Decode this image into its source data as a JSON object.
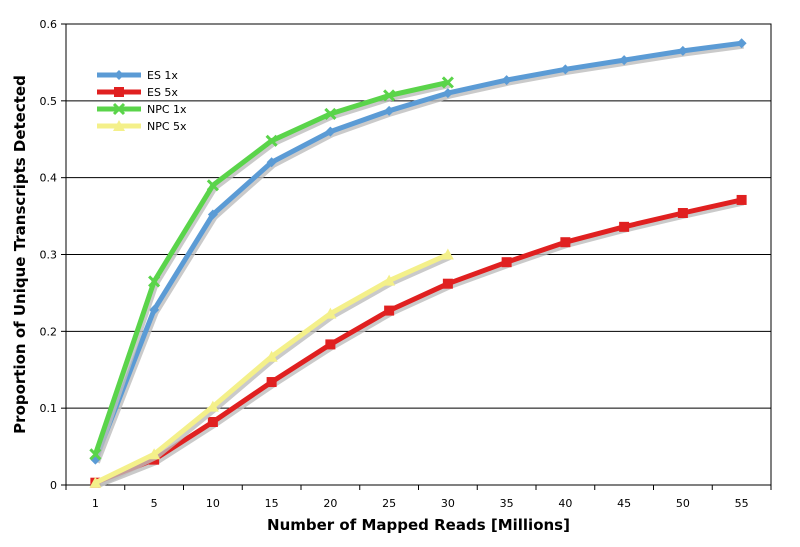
{
  "chart_data": {
    "type": "line",
    "title": "",
    "xlabel": "Number of Mapped Reads [Millions]",
    "ylabel": "Proportion of Unique Transcripts Detected",
    "x_categories": [
      "1",
      "5",
      "10",
      "15",
      "20",
      "25",
      "30",
      "35",
      "40",
      "45",
      "50",
      "55"
    ],
    "y_ticks": [
      "0",
      "0.1",
      "0.2",
      "0.3",
      "0.4",
      "0.5",
      "0.6"
    ],
    "ylim": [
      0,
      0.6
    ],
    "grid": "horizontal",
    "legend_position": "top-left",
    "series": [
      {
        "name": "ES 1x",
        "color": "#5b9bd5",
        "marker": "diamond",
        "values": [
          0.033,
          0.228,
          0.352,
          0.42,
          0.46,
          0.487,
          0.51,
          0.527,
          0.541,
          0.553,
          0.565,
          0.575
        ]
      },
      {
        "name": "ES 5x",
        "color": "#e02020",
        "marker": "square",
        "values": [
          0.003,
          0.033,
          0.082,
          0.134,
          0.183,
          0.227,
          0.262,
          0.29,
          0.316,
          0.336,
          0.354,
          0.371
        ]
      },
      {
        "name": "NPC 1x",
        "color": "#5ad44a",
        "marker": "x",
        "values": [
          0.04,
          0.265,
          0.39,
          0.448,
          0.483,
          0.507,
          0.524,
          null,
          null,
          null,
          null,
          null
        ]
      },
      {
        "name": "NPC 5x",
        "color": "#f4f08a",
        "marker": "triangle",
        "values": [
          0.003,
          0.04,
          0.102,
          0.167,
          0.223,
          0.266,
          0.3,
          null,
          null,
          null,
          null,
          null
        ]
      }
    ]
  }
}
